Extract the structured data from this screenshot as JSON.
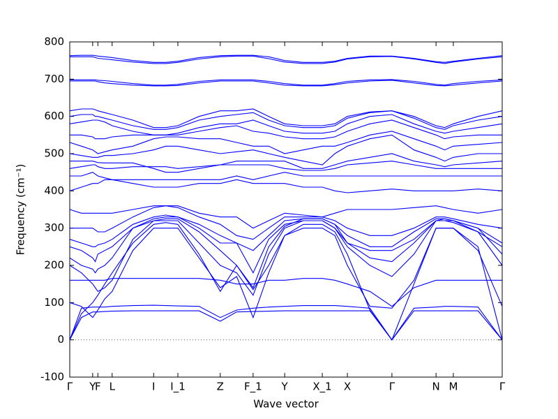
{
  "chart_data": {
    "type": "line",
    "xlabel": "Wave vector",
    "ylabel": "Frequency (cm⁻¹)",
    "xlim": [
      0,
      1
    ],
    "ylim": [
      -100,
      800
    ],
    "yticks": [
      -100,
      0,
      100,
      200,
      300,
      400,
      500,
      600,
      700,
      800
    ],
    "xticks": [
      {
        "value": 0,
        "label": "Γ"
      },
      {
        "value": 0.053,
        "label": "Y"
      },
      {
        "value": 0.065,
        "label": "F"
      },
      {
        "value": 0.098,
        "label": "L"
      },
      {
        "value": 0.194,
        "label": "I"
      },
      {
        "value": 0.25,
        "label": "I_1"
      },
      {
        "value": 0.348,
        "label": "Z"
      },
      {
        "value": 0.424,
        "label": "F_1"
      },
      {
        "value": 0.497,
        "label": "Y"
      },
      {
        "value": 0.584,
        "label": "X_1"
      },
      {
        "value": 0.642,
        "label": "X"
      },
      {
        "value": 0.745,
        "label": "Γ"
      },
      {
        "value": 0.847,
        "label": "N"
      },
      {
        "value": 0.887,
        "label": "M"
      },
      {
        "value": 1.0,
        "label": "Γ"
      }
    ],
    "zero_line": true,
    "x": [
      0,
      0.027,
      0.053,
      0.059,
      0.065,
      0.081,
      0.098,
      0.146,
      0.194,
      0.222,
      0.25,
      0.299,
      0.348,
      0.386,
      0.424,
      0.46,
      0.497,
      0.54,
      0.584,
      0.613,
      0.642,
      0.694,
      0.745,
      0.796,
      0.847,
      0.867,
      0.887,
      0.944,
      1.0
    ],
    "series": [
      {
        "color": "#0000ff",
        "values": [
          0,
          60,
          75,
          75,
          75,
          76,
          77,
          78,
          78,
          78,
          78,
          78,
          50,
          75,
          76,
          77,
          78,
          78,
          78,
          78,
          78,
          78,
          0,
          78,
          78,
          78,
          78,
          78,
          0
        ]
      },
      {
        "color": "#0000ff",
        "values": [
          0,
          85,
          88,
          88,
          88,
          88,
          90,
          92,
          93,
          92,
          91,
          90,
          60,
          80,
          85,
          88,
          90,
          92,
          92,
          92,
          90,
          85,
          0,
          85,
          88,
          90,
          90,
          88,
          0
        ]
      },
      {
        "color": "#0000ff",
        "values": [
          0,
          70,
          100,
          110,
          120,
          150,
          180,
          260,
          310,
          315,
          310,
          230,
          130,
          200,
          135,
          200,
          280,
          310,
          310,
          290,
          230,
          80,
          0,
          150,
          300,
          300,
          300,
          250,
          0
        ]
      },
      {
        "color": "#0000ff",
        "values": [
          100,
          90,
          60,
          70,
          80,
          110,
          130,
          240,
          300,
          300,
          300,
          220,
          140,
          170,
          60,
          180,
          280,
          300,
          300,
          280,
          200,
          90,
          85,
          160,
          300,
          300,
          300,
          240,
          90
        ]
      },
      {
        "color": "#0000ff",
        "values": [
          160,
          160,
          160,
          160,
          160,
          160,
          165,
          165,
          165,
          165,
          165,
          165,
          160,
          150,
          150,
          160,
          160,
          165,
          165,
          160,
          150,
          130,
          90,
          140,
          160,
          160,
          160,
          160,
          160
        ]
      },
      {
        "color": "#0000ff",
        "values": [
          200,
          180,
          150,
          140,
          130,
          140,
          160,
          270,
          320,
          320,
          320,
          260,
          200,
          180,
          120,
          230,
          300,
          320,
          320,
          300,
          250,
          200,
          170,
          230,
          320,
          320,
          320,
          290,
          200
        ]
      },
      {
        "color": "#0000ff",
        "values": [
          220,
          200,
          190,
          180,
          190,
          200,
          220,
          300,
          320,
          325,
          325,
          290,
          240,
          200,
          140,
          250,
          305,
          325,
          325,
          310,
          260,
          220,
          210,
          260,
          320,
          325,
          320,
          300,
          230
        ]
      },
      {
        "color": "#0000ff",
        "values": [
          250,
          240,
          220,
          210,
          230,
          240,
          250,
          300,
          325,
          330,
          330,
          300,
          260,
          260,
          180,
          270,
          310,
          320,
          320,
          300,
          260,
          240,
          240,
          270,
          320,
          320,
          315,
          290,
          250
        ]
      },
      {
        "color": "#0000ff",
        "values": [
          270,
          260,
          250,
          250,
          255,
          260,
          270,
          310,
          330,
          335,
          330,
          310,
          280,
          260,
          240,
          280,
          320,
          325,
          325,
          310,
          280,
          250,
          250,
          290,
          325,
          325,
          320,
          300,
          260
        ]
      },
      {
        "color": "#0000ff",
        "values": [
          300,
          300,
          300,
          295,
          290,
          290,
          300,
          330,
          355,
          360,
          355,
          330,
          310,
          280,
          270,
          300,
          330,
          330,
          330,
          320,
          300,
          280,
          280,
          300,
          330,
          330,
          325,
          310,
          300
        ]
      },
      {
        "color": "#0000ff",
        "values": [
          350,
          340,
          340,
          340,
          340,
          340,
          340,
          350,
          360,
          360,
          360,
          340,
          330,
          330,
          300,
          320,
          340,
          335,
          330,
          340,
          350,
          350,
          350,
          355,
          360,
          355,
          350,
          340,
          350
        ]
      },
      {
        "color": "#0000ff",
        "values": [
          400,
          410,
          420,
          420,
          420,
          430,
          430,
          420,
          410,
          410,
          410,
          420,
          420,
          430,
          420,
          420,
          420,
          410,
          410,
          400,
          395,
          400,
          405,
          400,
          400,
          400,
          400,
          405,
          400
        ]
      },
      {
        "color": "#0000ff",
        "values": [
          440,
          440,
          450,
          445,
          440,
          435,
          430,
          430,
          430,
          430,
          430,
          430,
          430,
          440,
          430,
          440,
          450,
          440,
          440,
          440,
          440,
          440,
          440,
          440,
          440,
          440,
          440,
          440,
          440
        ]
      },
      {
        "color": "#0000ff",
        "values": [
          460,
          465,
          470,
          470,
          465,
          460,
          460,
          465,
          465,
          465,
          460,
          465,
          470,
          470,
          470,
          470,
          460,
          455,
          455,
          460,
          470,
          475,
          480,
          470,
          460,
          460,
          460,
          460,
          460
        ]
      },
      {
        "color": "#0000ff",
        "values": [
          480,
          480,
          480,
          478,
          476,
          475,
          475,
          475,
          460,
          450,
          450,
          460,
          470,
          480,
          480,
          480,
          480,
          460,
          460,
          470,
          480,
          490,
          500,
          480,
          470,
          465,
          470,
          475,
          480
        ]
      },
      {
        "color": "#0000ff",
        "values": [
          500,
          495,
          490,
          490,
          490,
          495,
          495,
          500,
          510,
          520,
          520,
          510,
          500,
          505,
          510,
          500,
          490,
          480,
          470,
          500,
          520,
          540,
          550,
          510,
          490,
          480,
          490,
          500,
          500
        ]
      },
      {
        "color": "#0000ff",
        "values": [
          530,
          520,
          510,
          505,
          500,
          505,
          510,
          520,
          540,
          545,
          545,
          540,
          540,
          530,
          520,
          520,
          500,
          510,
          520,
          520,
          530,
          550,
          560,
          540,
          520,
          510,
          520,
          525,
          530
        ]
      },
      {
        "color": "#0000ff",
        "values": [
          550,
          550,
          545,
          540,
          540,
          540,
          545,
          550,
          550,
          550,
          550,
          560,
          570,
          575,
          560,
          555,
          545,
          540,
          540,
          545,
          560,
          580,
          590,
          570,
          550,
          540,
          545,
          550,
          550
        ]
      },
      {
        "color": "#0000ff",
        "values": [
          580,
          585,
          590,
          590,
          590,
          585,
          575,
          560,
          550,
          550,
          555,
          570,
          580,
          580,
          590,
          575,
          560,
          555,
          555,
          560,
          580,
          600,
          605,
          580,
          560,
          555,
          560,
          570,
          580
        ]
      },
      {
        "color": "#0000ff",
        "values": [
          600,
          605,
          605,
          600,
          600,
          595,
          590,
          575,
          565,
          565,
          570,
          590,
          600,
          605,
          610,
          590,
          575,
          570,
          570,
          575,
          595,
          610,
          615,
          595,
          570,
          565,
          575,
          590,
          600
        ]
      },
      {
        "color": "#0000ff",
        "values": [
          615,
          620,
          620,
          618,
          615,
          610,
          605,
          590,
          570,
          570,
          575,
          600,
          615,
          615,
          620,
          600,
          580,
          575,
          575,
          580,
          600,
          612,
          615,
          600,
          575,
          570,
          580,
          600,
          615
        ]
      },
      {
        "color": "#0000ff",
        "values": [
          695,
          695,
          695,
          695,
          693,
          690,
          688,
          684,
          682,
          682,
          683,
          690,
          695,
          695,
          695,
          690,
          684,
          682,
          682,
          685,
          690,
          695,
          697,
          690,
          683,
          682,
          684,
          690,
          695
        ]
      },
      {
        "color": "#0000ff",
        "values": [
          698,
          698,
          698,
          698,
          697,
          696,
          694,
          688,
          684,
          684,
          686,
          694,
          698,
          698,
          698,
          694,
          688,
          684,
          684,
          688,
          694,
          698,
          699,
          694,
          686,
          684,
          688,
          694,
          698
        ]
      },
      {
        "color": "#0000ff",
        "values": [
          760,
          760,
          760,
          758,
          756,
          754,
          752,
          746,
          742,
          742,
          745,
          754,
          760,
          762,
          762,
          755,
          746,
          742,
          742,
          746,
          754,
          760,
          761,
          754,
          745,
          742,
          746,
          754,
          760
        ]
      },
      {
        "color": "#0000ff",
        "values": [
          763,
          764,
          764,
          763,
          762,
          760,
          758,
          750,
          745,
          745,
          748,
          758,
          763,
          764,
          764,
          760,
          750,
          745,
          745,
          748,
          756,
          762,
          762,
          756,
          747,
          745,
          748,
          756,
          763
        ]
      }
    ]
  }
}
